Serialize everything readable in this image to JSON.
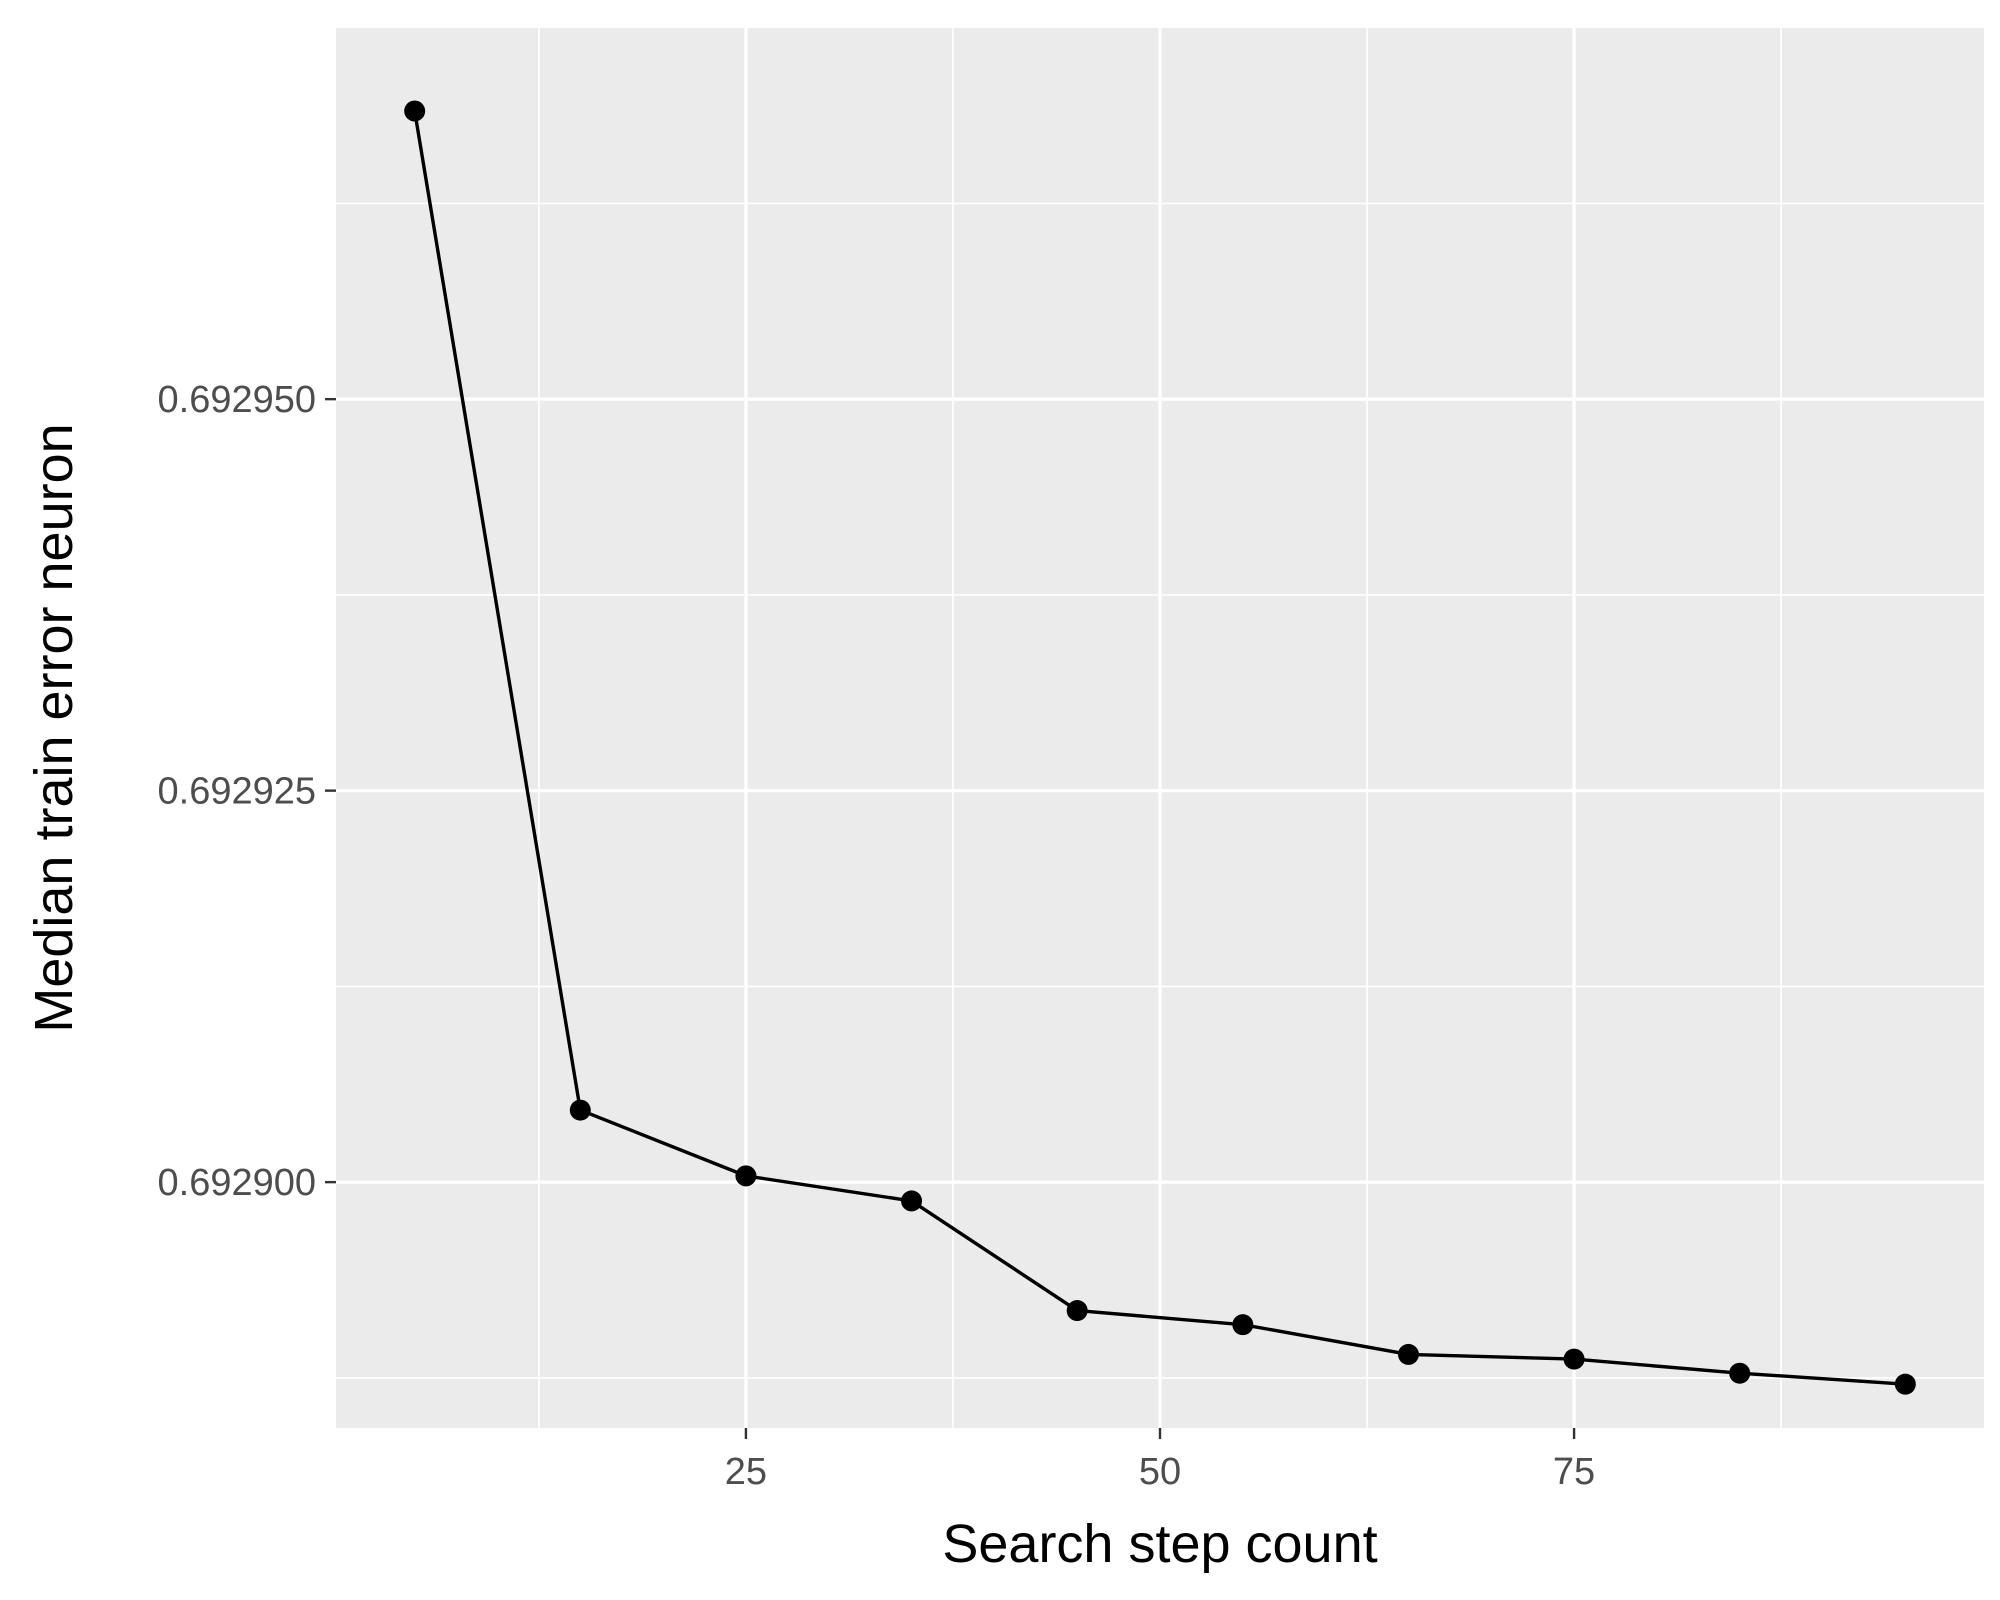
{
  "chart_data": {
    "type": "line",
    "title": "",
    "xlabel": "Search step count",
    "ylabel": "Median train error neuron",
    "xlim": [
      0.25,
      99.75
    ],
    "ylim": [
      0.6928843,
      0.6929737
    ],
    "x_ticks": [
      25,
      50,
      75
    ],
    "x_tick_labels": [
      "25",
      "50",
      "75"
    ],
    "y_ticks": [
      0.6929,
      0.692925,
      0.69295
    ],
    "y_tick_labels": [
      "0.692900",
      "0.692925",
      "0.692950"
    ],
    "grid": true,
    "legend": "none",
    "colors": {
      "panel": "#ebebeb",
      "grid": "#ffffff",
      "line": "#000000",
      "point": "#000000",
      "tick_text": "#4d4d4d",
      "title_text": "#000000"
    },
    "series": [
      {
        "x": [
          5,
          15,
          25,
          35,
          45,
          55,
          65,
          75,
          85,
          95
        ],
        "y": [
          0.6929684,
          0.6929046,
          0.6929004,
          0.6928988,
          0.6928918,
          0.6928909,
          0.692889,
          0.6928887,
          0.6928878,
          0.6928871
        ]
      }
    ]
  }
}
